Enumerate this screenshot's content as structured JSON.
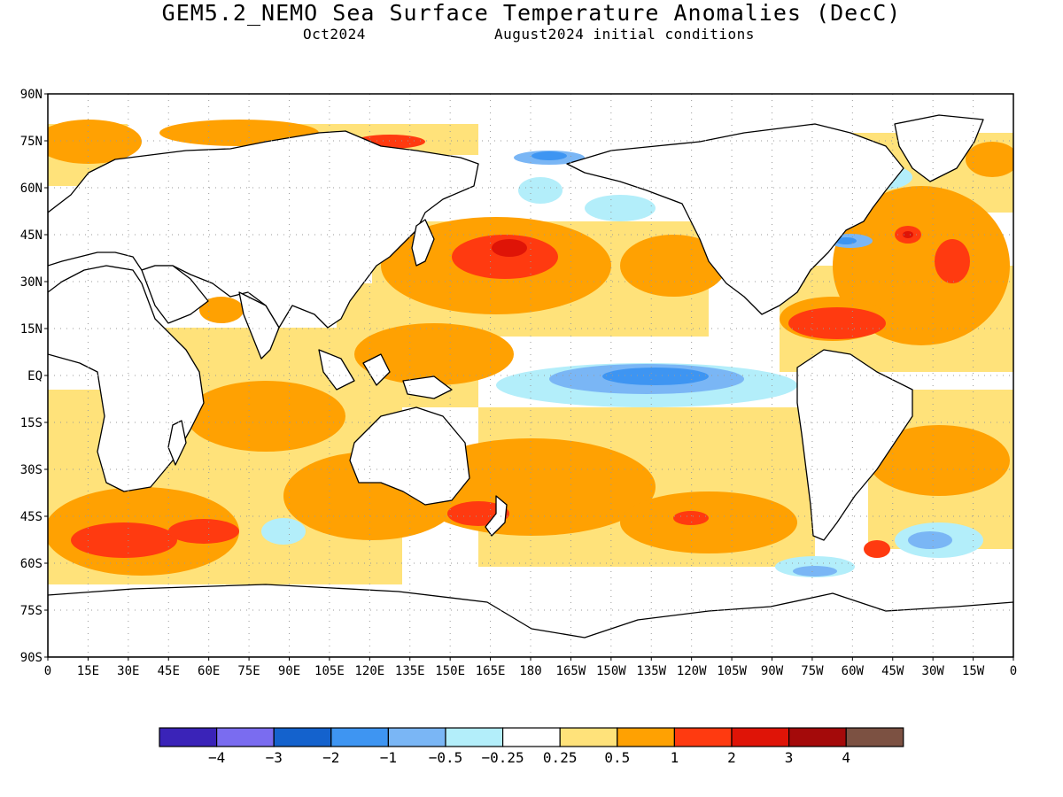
{
  "header": {
    "title": "GEM5.2_NEMO Sea Surface Temperature Anomalies (DecC)",
    "valid_month": "Oct2024",
    "init_conditions": "August2024 initial conditions"
  },
  "map": {
    "lat_labels": [
      "90N",
      "75N",
      "60N",
      "45N",
      "30N",
      "15N",
      "EQ",
      "15S",
      "30S",
      "45S",
      "60S",
      "75S",
      "90S"
    ],
    "lon_labels": [
      "0",
      "15E",
      "30E",
      "45E",
      "60E",
      "75E",
      "90E",
      "105E",
      "120E",
      "135E",
      "150E",
      "165E",
      "180",
      "165W",
      "150W",
      "135W",
      "120W",
      "105W",
      "90W",
      "75W",
      "60W",
      "45W",
      "30W",
      "15W",
      "0"
    ],
    "grid": "dotted"
  },
  "legend": {
    "colors": [
      "#3a23b8",
      "#7a6cf0",
      "#1462cd",
      "#3e95f2",
      "#7ab6f5",
      "#b3eefa",
      "#ffffff",
      "#ffe27a",
      "#ffa102",
      "#ff3a10",
      "#df1407",
      "#a40a0a",
      "#7c5142"
    ],
    "labels": [
      "−4",
      "−3",
      "−2",
      "−1",
      "−0.5",
      "−0.25",
      "0.25",
      "0.5",
      "1",
      "2",
      "3",
      "4"
    ]
  }
}
